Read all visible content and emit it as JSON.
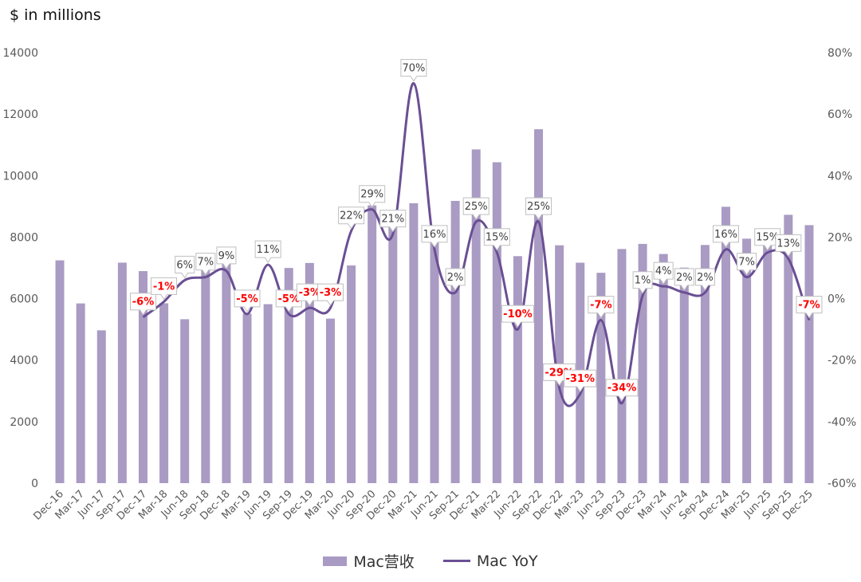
{
  "chart_data": {
    "type": "bar+line",
    "unit_label": "$ in millions",
    "colors": {
      "bar": "#a99bc3",
      "line": "#6a4f94",
      "negative_label": "#ff0000",
      "positive_label": "#404040"
    },
    "categories": [
      "Dec-16",
      "Mar-17",
      "Jun-17",
      "Sep-17",
      "Dec-17",
      "Mar-18",
      "Jun-18",
      "Sep-18",
      "Dec-18",
      "Mar-19",
      "Jun-19",
      "Sep-19",
      "Dec-19",
      "Mar-20",
      "Jun-20",
      "Sep-20",
      "Dec-20",
      "Mar-21",
      "Jun-21",
      "Sep-21",
      "Dec-21",
      "Mar-22",
      "Jun-22",
      "Sep-22",
      "Dec-22",
      "Mar-23",
      "Jun-23",
      "Sep-23",
      "Dec-23",
      "Mar-24",
      "Jun-24",
      "Sep-24",
      "Dec-24",
      "Mar-25",
      "Jun-25",
      "Sep-25",
      "Dec-25"
    ],
    "series": [
      {
        "name": "Mac营收",
        "type": "bar",
        "axis": "left",
        "values": [
          7244,
          5844,
          4969,
          7170,
          6895,
          5848,
          5330,
          7411,
          7416,
          5513,
          5820,
          6997,
          7160,
          5351,
          7079,
          9032,
          8675,
          9102,
          8235,
          9178,
          10852,
          10435,
          7382,
          11508,
          7735,
          7168,
          6840,
          7614,
          7780,
          7451,
          7009,
          7744,
          8987,
          7949,
          8046,
          8726,
          8390
        ]
      },
      {
        "name": "Mac YoY",
        "type": "line",
        "axis": "right",
        "values": [
          null,
          null,
          null,
          null,
          -6,
          -1,
          6,
          7,
          9,
          -5,
          11,
          -5,
          -3,
          -3,
          22,
          29,
          21,
          70,
          16,
          2,
          25,
          15,
          -10,
          25,
          -29,
          -31,
          -7,
          -34,
          1,
          4,
          2,
          2,
          16,
          7,
          15,
          13,
          -7
        ],
        "labels": [
          null,
          null,
          null,
          null,
          "-6%",
          "-1%",
          "6%",
          "7%",
          "9%",
          "-5%",
          "11%",
          "-5%",
          "-3%",
          "-3%",
          "22%",
          "29%",
          "21%",
          "70%",
          "16%",
          "2%",
          "25%",
          "15%",
          "-10%",
          "25%",
          "-29%",
          "-31%",
          "-7%",
          "-34%",
          "1%",
          "4%",
          "2%",
          "2%",
          "16%",
          "7%",
          "15%",
          "13%",
          "-7%"
        ]
      }
    ],
    "y_left": {
      "min": 0,
      "max": 14000,
      "ticks": [
        "0",
        "2000",
        "4000",
        "6000",
        "8000",
        "10000",
        "12000",
        "14000"
      ]
    },
    "y_right": {
      "min": -60,
      "max": 80,
      "ticks": [
        "-60%",
        "-40%",
        "-20%",
        "0%",
        "20%",
        "40%",
        "60%",
        "80%"
      ]
    },
    "grid": false,
    "legend_position": "bottom"
  }
}
